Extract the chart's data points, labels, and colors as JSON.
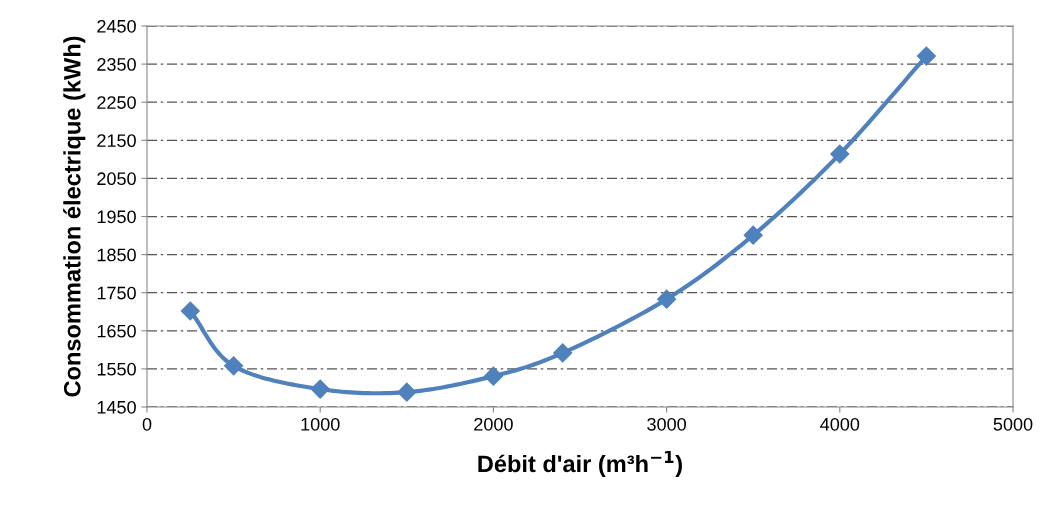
{
  "chart_data": {
    "type": "line",
    "xlabel": "Débit d'air (m³h$^{−1}$)",
    "ylabel": "Consommation électrique (kWh)",
    "x": [
      250,
      500,
      1000,
      1500,
      2000,
      2400,
      3000,
      3500,
      4000,
      4500
    ],
    "series": [
      {
        "color": "#4f81bd",
        "values": [
          1702,
          1558,
          1497,
          1489,
          1531,
          1592,
          1733,
          1901,
          2114,
          2371
        ]
      }
    ],
    "xlim": [
      0,
      5000
    ],
    "xticks": [
      0,
      1000,
      2000,
      3000,
      4000,
      5000
    ],
    "ylim": [
      1450,
      2450
    ],
    "yticks": [
      1450,
      1550,
      1650,
      1750,
      1850,
      1950,
      2050,
      2150,
      2250,
      2350,
      2450
    ],
    "grid": "y",
    "marker": "diamond",
    "line_style": "solid",
    "legend": false
  }
}
